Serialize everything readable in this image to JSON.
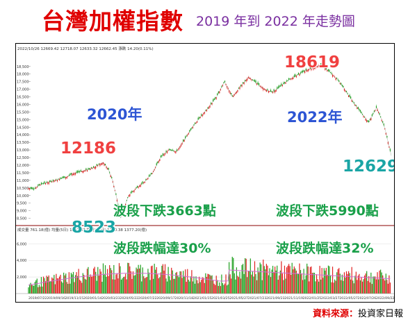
{
  "title": "台灣加權指數",
  "subtitle": "2019 年到 2022 年走勢圖",
  "source_label": "資料來源：",
  "source_value": "投資家日報",
  "chart_data": [
    {
      "type": "line",
      "header_text": [
        "2022/10/26",
        "12669.42",
        "12718.07",
        "12633.32",
        "12662.45",
        "漲跌",
        "14.20(0.11%)"
      ],
      "y_ticks": [
        "18,500",
        "18,000",
        "17,500",
        "17,000",
        "16,500",
        "16,000",
        "15,500",
        "15,000",
        "14,500",
        "14,000",
        "13,500",
        "13,000",
        "12,500",
        "12,000",
        "11,500",
        "11,000",
        "10,500",
        "10,000",
        "9,500",
        "9,000",
        "8,500"
      ],
      "ylim": [
        8300,
        18900
      ],
      "x_ticks": [
        "2019/07/22",
        "2019/09/16",
        "2019/11/15",
        "2020/01/14",
        "2020/03/23",
        "2020/05/22",
        "2020/07/22",
        "2020/09/17",
        "2020/11/18",
        "2021/01/15",
        "2021/03/25",
        "2021/05/27",
        "2021/07/23",
        "2021/09/23",
        "2021/11/19",
        "2022/01/25",
        "2022/03/27",
        "2022/05/27",
        "2022/07/26",
        "2022/09/22"
      ],
      "series": [
        {
          "x": [
            0,
            8,
            16,
            24,
            32,
            40,
            48,
            56,
            64,
            72,
            80,
            88,
            96,
            104,
            112,
            120,
            126,
            132,
            138,
            150,
            162,
            174,
            186,
            198,
            210,
            222,
            234,
            246,
            258,
            270,
            282,
            294,
            306,
            318,
            330,
            342,
            354,
            366,
            378,
            390,
            402,
            414,
            426,
            438,
            450,
            462,
            474,
            486,
            498,
            510,
            522,
            534,
            544
          ],
          "y": [
            10500,
            10400,
            10700,
            10800,
            10900,
            11000,
            11100,
            11200,
            11400,
            11500,
            11600,
            11700,
            11800,
            12000,
            12186,
            11700,
            11000,
            9900,
            8523,
            10000,
            10500,
            10900,
            11500,
            12500,
            13000,
            12900,
            13700,
            14500,
            15200,
            15800,
            16500,
            17500,
            16500,
            17200,
            17800,
            17400,
            17000,
            16800,
            17200,
            17600,
            17900,
            18200,
            18400,
            18619,
            18200,
            17700,
            17000,
            16200,
            15500,
            14800,
            15800,
            14500,
            12629
          ]
        }
      ],
      "peaks": [
        {
          "label": "12186",
          "value": 12186
        },
        {
          "label": "18619",
          "value": 18619
        }
      ],
      "troughs": [
        {
          "label": "8523",
          "value": 8523
        },
        {
          "label": "12629",
          "value": 12629
        }
      ],
      "annotations": [
        {
          "label": "2020年"
        },
        {
          "label": "2022年"
        },
        {
          "label": "波段下跌3663點"
        },
        {
          "label": "波段下跌5990點"
        },
        {
          "label": "波段跌幅達30%"
        },
        {
          "label": "波段跌幅達32%"
        }
      ]
    },
    {
      "type": "bar",
      "header_text": [
        "成交量",
        "761.18(億)",
        "均量(5日)",
        "1131.63",
        "均量(20日)",
        "1240.38",
        "1377.20(億)"
      ],
      "y_ticks": [
        "6,000",
        "4,000",
        "2,000"
      ],
      "ylim": [
        0,
        7200
      ],
      "color_up": "#e02020",
      "color_down": "#20a020",
      "ma_color": "#d070d0"
    }
  ]
}
